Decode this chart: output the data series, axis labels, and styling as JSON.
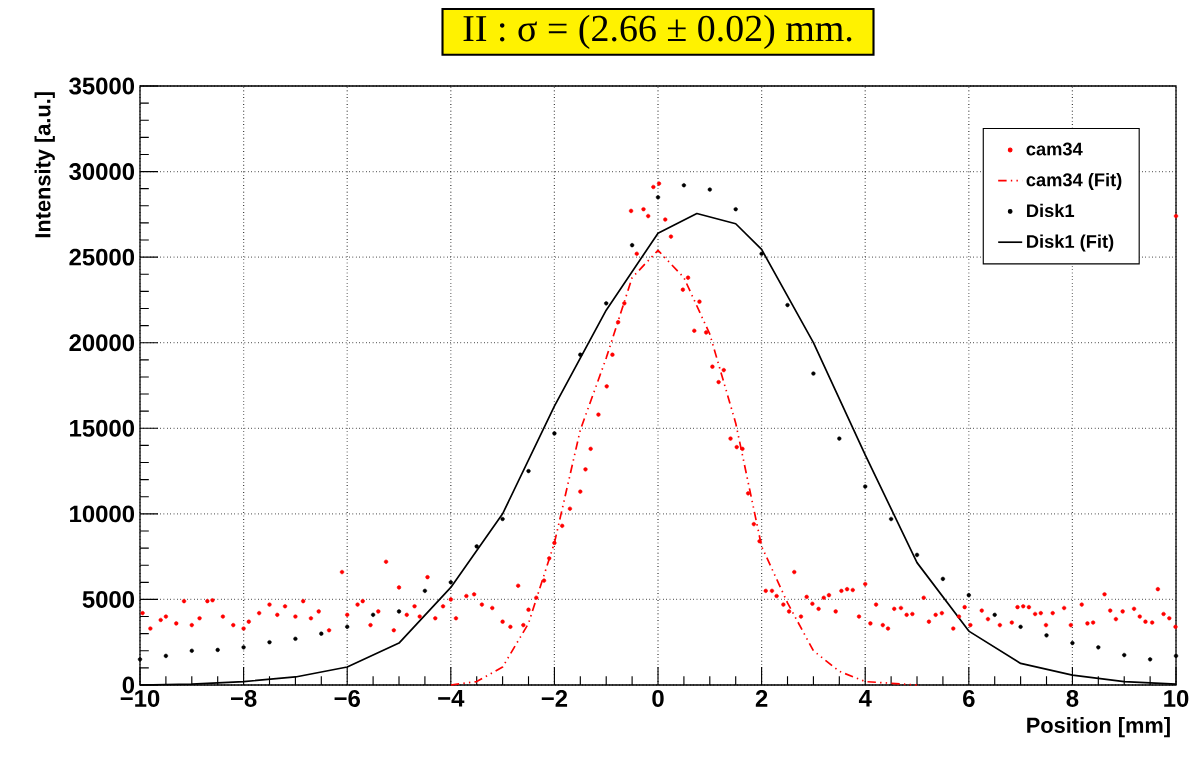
{
  "chart_data": {
    "type": "scatter",
    "annotations": [
      "II : σ = (2.66 ± 0.02) mm."
    ],
    "xlabel": "Position [mm]",
    "ylabel": "Intensity [a.u.]",
    "xlim": [
      -10,
      10
    ],
    "ylim": [
      0,
      35000
    ],
    "xticks": [
      {
        "value": -10,
        "label": "−10"
      },
      {
        "value": -8,
        "label": "−8"
      },
      {
        "value": -6,
        "label": "−6"
      },
      {
        "value": -4,
        "label": "−4"
      },
      {
        "value": -2,
        "label": "−2"
      },
      0,
      2,
      4,
      6,
      8,
      10
    ],
    "yticks": [
      0,
      5000,
      10000,
      15000,
      20000,
      25000,
      30000,
      35000
    ],
    "grid": true,
    "legend": "top right",
    "series": [
      {
        "name": "cam34",
        "type": "scatter",
        "marker": "circle",
        "color": "#ff0000",
        "x": [
          -9.95,
          -9.8,
          -9.6,
          -9.5,
          -9.3,
          -9.15,
          -9.0,
          -8.85,
          -8.7,
          -8.6,
          -8.4,
          -8.2,
          -8.0,
          -7.9,
          -7.7,
          -7.5,
          -7.35,
          -7.2,
          -7.0,
          -6.85,
          -6.7,
          -6.55,
          -6.35,
          -6.1,
          -6.0,
          -5.8,
          -5.7,
          -5.55,
          -5.4,
          -5.25,
          -5.1,
          -5.0,
          -4.85,
          -4.7,
          -4.6,
          -4.45,
          -4.3,
          -4.15,
          -4.0,
          -3.9,
          -3.7,
          -3.55,
          -3.4,
          -3.2,
          -3.0,
          -2.85,
          -2.7,
          -2.6,
          -2.5,
          -2.35,
          -2.2,
          -2.1,
          -2.0,
          -1.85,
          -1.7,
          -1.5,
          -1.4,
          -1.3,
          -1.15,
          -0.99,
          -0.88,
          -0.77,
          -0.65,
          -0.52,
          -0.41,
          -0.28,
          -0.19,
          -0.09,
          0.02,
          0.14,
          0.25,
          0.48,
          0.58,
          0.7,
          0.8,
          0.93,
          1.05,
          1.17,
          1.27,
          1.4,
          1.52,
          1.63,
          1.74,
          1.85,
          1.96,
          2.08,
          2.2,
          2.29,
          2.42,
          2.53,
          2.63,
          2.76,
          2.87,
          2.98,
          3.1,
          3.2,
          3.3,
          3.43,
          3.54,
          3.65,
          3.76,
          3.88,
          4.0,
          4.1,
          4.21,
          4.34,
          4.44,
          4.56,
          4.69,
          4.8,
          4.91,
          5.13,
          5.23,
          5.36,
          5.48,
          5.7,
          5.81,
          5.92,
          6.03,
          6.25,
          6.37,
          6.6,
          6.83,
          6.94,
          7.05,
          7.16,
          7.28,
          7.39,
          7.49,
          7.62,
          7.84,
          7.97,
          8.18,
          8.29,
          8.4,
          8.62,
          8.73,
          8.84,
          8.97,
          9.19,
          9.3,
          9.41,
          9.54,
          9.65,
          9.76,
          9.87,
          9.99,
          10.0
        ],
        "values": [
          4200,
          3300,
          3800,
          4000,
          3600,
          4900,
          3500,
          3900,
          4900,
          4950,
          4000,
          3500,
          3300,
          3700,
          4200,
          4700,
          4100,
          4600,
          4000,
          4900,
          3900,
          4300,
          3200,
          6600,
          4100,
          4700,
          4900,
          3500,
          4300,
          7200,
          3200,
          5700,
          4100,
          4600,
          4000,
          6300,
          3900,
          4600,
          5000,
          3900,
          5200,
          5300,
          4700,
          4500,
          3700,
          3400,
          5800,
          3500,
          4400,
          5100,
          6100,
          7400,
          8300,
          9300,
          10300,
          11300,
          12600,
          13800,
          15800,
          17450,
          19300,
          21200,
          22300,
          27700,
          25200,
          27800,
          27400,
          29100,
          29300,
          27200,
          26200,
          23100,
          23800,
          20700,
          22400,
          20600,
          18600,
          17700,
          18400,
          14400,
          13900,
          13800,
          11200,
          9400,
          8400,
          5500,
          5500,
          5200,
          4700,
          4300,
          6600,
          4000,
          5150,
          4750,
          4450,
          5100,
          5250,
          4300,
          5500,
          5600,
          5550,
          4000,
          5900,
          3600,
          4700,
          3500,
          3300,
          4450,
          4500,
          4100,
          4150,
          5100,
          3700,
          4100,
          4200,
          3300,
          4000,
          4550,
          3500,
          4350,
          3850,
          3500,
          3650,
          4550,
          4600,
          4550,
          4150,
          4200,
          3500,
          4200,
          4500,
          3500,
          4700,
          3600,
          3650,
          5300,
          4350,
          3850,
          4300,
          4450,
          4000,
          3700,
          3650,
          5600,
          4150,
          3900,
          3400,
          27400
        ]
      },
      {
        "name": "cam34 (Fit)",
        "type": "line",
        "marker": "none",
        "line_style": "dashed",
        "color": "#ff0000",
        "x": [
          -4,
          -3.5,
          -3,
          -2.5,
          -2,
          -1.5,
          -1,
          -0.5,
          0,
          0.5,
          1,
          1.5,
          2,
          2.5,
          3,
          3.5,
          4,
          5
        ],
        "values": [
          0,
          200,
          1050,
          3600,
          8300,
          14900,
          19100,
          23800,
          25400,
          23800,
          20500,
          15300,
          8100,
          4800,
          2000,
          800,
          200,
          0
        ]
      },
      {
        "name": "Disk1",
        "type": "scatter",
        "marker": "circle",
        "color": "#000000",
        "x": [
          -10,
          -9.5,
          -9,
          -8.5,
          -8,
          -7.5,
          -7,
          -6.5,
          -6,
          -5.5,
          -5,
          -4.5,
          -4,
          -3.5,
          -3,
          -2.5,
          -2,
          -1.5,
          -1,
          -0.5,
          0,
          0.5,
          1,
          1.5,
          2,
          2.5,
          3,
          3.5,
          4,
          4.5,
          5,
          5.5,
          6,
          6.5,
          7,
          7.5,
          8,
          8.5,
          9,
          9.5,
          10
        ],
        "values": [
          1500,
          1700,
          2000,
          2050,
          2200,
          2500,
          2700,
          3000,
          3400,
          4100,
          4300,
          5500,
          6000,
          8100,
          9700,
          12500,
          14700,
          19300,
          22300,
          25700,
          28500,
          29200,
          28950,
          27800,
          25200,
          22200,
          18200,
          14400,
          11600,
          9700,
          7600,
          6200,
          5250,
          4100,
          3400,
          2900,
          2450,
          2200,
          1750,
          1500,
          1700
        ]
      },
      {
        "name": "Disk1 (Fit)",
        "type": "line",
        "marker": "none",
        "line_style": "solid",
        "color": "#000000",
        "x": [
          -10,
          -9,
          -8,
          -7,
          -6,
          -5,
          -4,
          -3,
          -2,
          -1,
          0,
          0.75,
          1.5,
          2,
          3,
          4,
          5,
          6,
          7,
          8,
          9,
          10
        ],
        "values": [
          0,
          50,
          200,
          470,
          1050,
          2450,
          5700,
          10000,
          16300,
          21900,
          26400,
          27550,
          26950,
          25450,
          20000,
          13450,
          7150,
          3150,
          1260,
          580,
          200,
          50
        ]
      }
    ]
  }
}
